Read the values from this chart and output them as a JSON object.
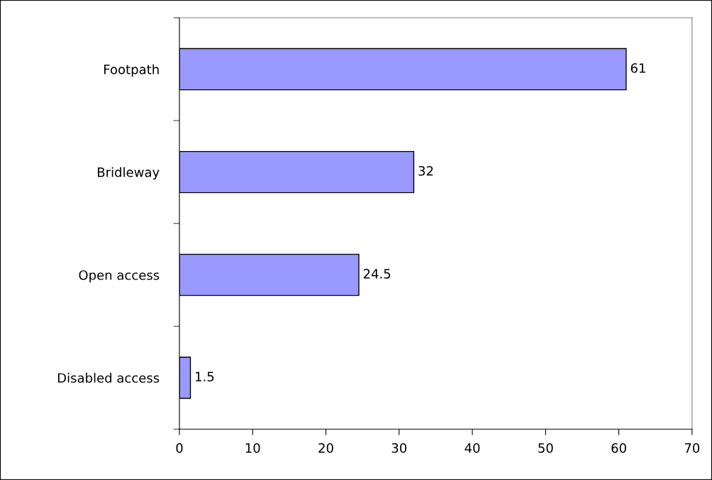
{
  "chart_data": {
    "type": "bar",
    "orientation": "horizontal",
    "categories": [
      "Footpath",
      "Bridleway",
      "Open access",
      "Disabled access"
    ],
    "values": [
      61,
      32,
      24.5,
      1.5
    ],
    "color": "#9999ff",
    "xlim": [
      0,
      70
    ],
    "xticks": [
      0,
      10,
      20,
      30,
      40,
      50,
      60,
      70
    ],
    "data_labels": true,
    "grid": false,
    "legend": false
  }
}
